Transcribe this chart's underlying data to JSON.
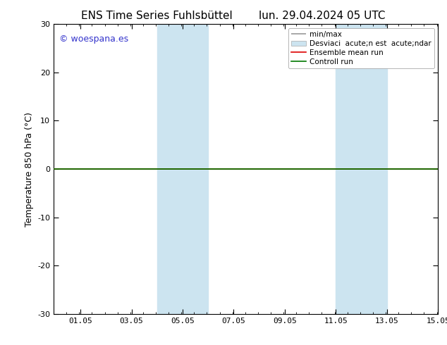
{
  "title_left": "ENS Time Series Fuhlsbüttel",
  "title_right": "lun. 29.04.2024 05 UTC",
  "ylabel": "Temperature 850 hPa (°C)",
  "xlim": [
    0.0,
    15.05
  ],
  "ylim": [
    -30,
    30
  ],
  "xticks": [
    1.05,
    3.05,
    5.05,
    7.05,
    9.05,
    11.05,
    13.05,
    15.05
  ],
  "xtick_labels": [
    "01.05",
    "03.05",
    "05.05",
    "07.05",
    "09.05",
    "11.05",
    "13.05",
    "15.05"
  ],
  "yticks": [
    -30,
    -20,
    -10,
    0,
    10,
    20,
    30
  ],
  "watermark": "© woespana.es",
  "watermark_color": "#3333cc",
  "bg_color": "#ffffff",
  "plot_bg_color": "#ffffff",
  "shaded_regions": [
    {
      "xmin": 4.05,
      "xmax": 6.05,
      "color": "#cce4f0"
    },
    {
      "xmin": 11.05,
      "xmax": 13.05,
      "color": "#cce4f0"
    }
  ],
  "flat_line_y": 0.0,
  "flat_line_color_ensemble": "#dd0000",
  "flat_line_color_control": "#007700",
  "legend_label_minmax": "min/max",
  "legend_label_std": "Desviaci  acute;n est  acute;ndar",
  "legend_label_ensemble": "Ensemble mean run",
  "legend_label_control": "Controll run",
  "legend_color_minmax": "#999999",
  "legend_color_std": "#cce4f0",
  "title_fontsize": 11,
  "axis_fontsize": 9,
  "tick_fontsize": 8,
  "legend_fontsize": 7.5
}
